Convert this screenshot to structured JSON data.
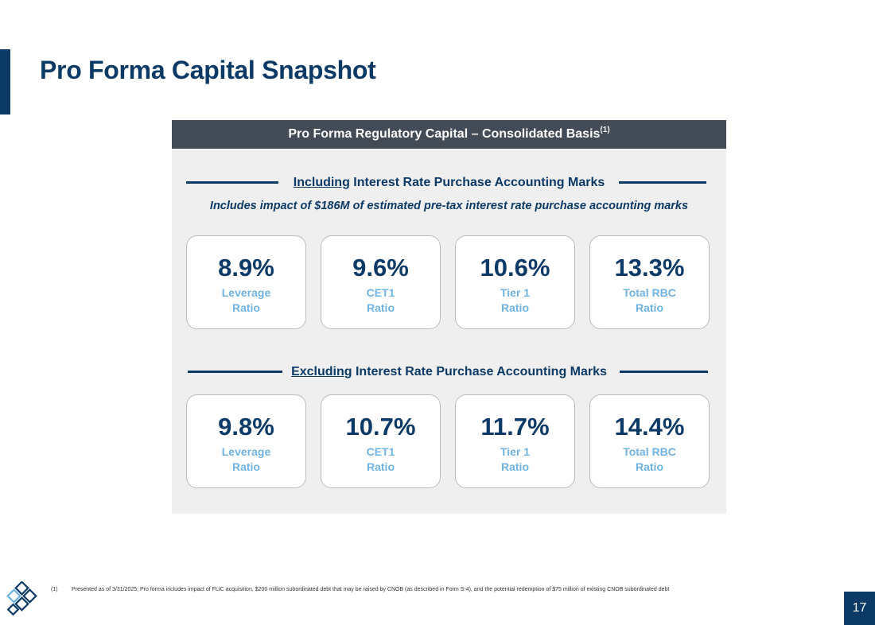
{
  "page": {
    "title": "Pro Forma Capital Snapshot",
    "page_number": "17"
  },
  "panel": {
    "header": "Pro Forma Regulatory Capital – Consolidated Basis",
    "header_sup": "(1)",
    "including": {
      "keyword": "Including",
      "rest": " Interest Rate Purchase Accounting Marks",
      "subtitle": "Includes impact of $186M of estimated pre-tax interest rate purchase accounting marks",
      "cards": [
        {
          "value": "8.9%",
          "line1": "Leverage",
          "line2": "Ratio"
        },
        {
          "value": "9.6%",
          "line1": "CET1",
          "line2": "Ratio"
        },
        {
          "value": "10.6%",
          "line1": "Tier 1",
          "line2": "Ratio"
        },
        {
          "value": "13.3%",
          "line1": "Total RBC",
          "line2": "Ratio"
        }
      ]
    },
    "excluding": {
      "keyword": "Excluding",
      "rest": " Interest Rate Purchase Accounting Marks",
      "cards": [
        {
          "value": "9.8%",
          "line1": "Leverage",
          "line2": "Ratio"
        },
        {
          "value": "10.7%",
          "line1": "CET1",
          "line2": "Ratio"
        },
        {
          "value": "11.7%",
          "line1": "Tier 1",
          "line2": "Ratio"
        },
        {
          "value": "14.4%",
          "line1": "Total RBC",
          "line2": "Ratio"
        }
      ]
    }
  },
  "footnote": {
    "marker": "(1)",
    "text": "Presented as of 3/31/2025; Pro forma includes impact of FLIC acquisition, $200 million subordinated debt that may be raised by CNOB (as described in Form S-4), and the potential redemption of $75 million of existing CNOB subordinated debt"
  },
  "logo": {
    "icon": "diamond-lattice-logo-icon"
  },
  "colors": {
    "navy": "#0c3a67",
    "header_gray": "#434b56",
    "panel_gray": "#efefef",
    "label_blue": "#6fb3e3"
  }
}
